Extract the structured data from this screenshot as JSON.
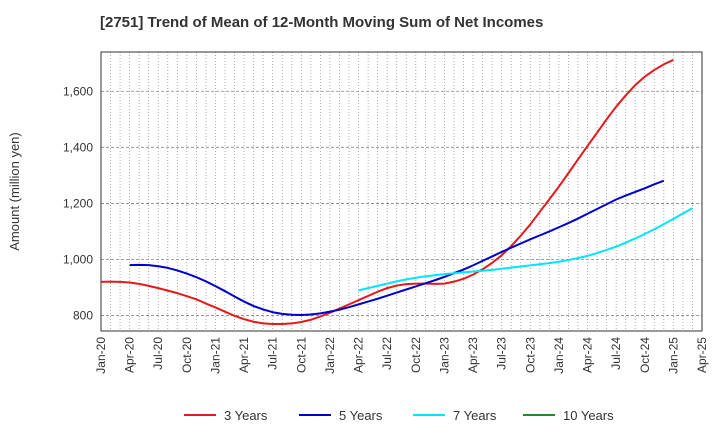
{
  "chart_data": {
    "type": "line",
    "title": "[2751]  Trend of Mean of 12-Month Moving Sum of Net Incomes",
    "ylabel": "Amount (million yen)",
    "xlabel": "",
    "x_categories": [
      "Jan-20",
      "Apr-20",
      "Jul-20",
      "Oct-20",
      "Jan-21",
      "Apr-21",
      "Jul-21",
      "Oct-21",
      "Jan-22",
      "Apr-22",
      "Jul-22",
      "Oct-22",
      "Jan-23",
      "Apr-23",
      "Jul-23",
      "Oct-23",
      "Jan-24",
      "Apr-24",
      "Jul-24",
      "Oct-24",
      "Jan-25",
      "Apr-25"
    ],
    "y_ticks": [
      800,
      1000,
      1200,
      1400,
      1600
    ],
    "y_tick_labels": [
      "800",
      "1,000",
      "1,200",
      "1,400",
      "1,600"
    ],
    "ylim": [
      745,
      1740
    ],
    "grid": true,
    "legend_position": "bottom",
    "series": [
      {
        "name": "3 Years",
        "color": "#e31a1c",
        "start_index": 0,
        "values": [
          920,
          921,
          920,
          918,
          913,
          906,
          898,
          889,
          880,
          869,
          858,
          843,
          829,
          814,
          799,
          787,
          778,
          772,
          770,
          770,
          772,
          777,
          785,
          797,
          810,
          825,
          840,
          855,
          870,
          885,
          898,
          907,
          912,
          914,
          914,
          913,
          914,
          921,
          931,
          946,
          965,
          988,
          1015,
          1048,
          1085,
          1125,
          1170,
          1215,
          1260,
          1308,
          1357,
          1405,
          1452,
          1500,
          1545,
          1585,
          1622,
          1652,
          1676,
          1696,
          1712
        ]
      },
      {
        "name": "5 Years",
        "color": "#0000cc",
        "start_index": 3,
        "values": [
          980,
          981,
          980,
          976,
          970,
          961,
          950,
          937,
          922,
          905,
          887,
          868,
          850,
          834,
          822,
          812,
          806,
          803,
          802,
          804,
          808,
          814,
          821,
          830,
          840,
          850,
          860,
          871,
          882,
          893,
          904,
          915,
          926,
          938,
          951,
          964,
          979,
          995,
          1011,
          1027,
          1042,
          1057,
          1072,
          1086,
          1100,
          1115,
          1130,
          1146,
          1163,
          1180,
          1197,
          1214,
          1228,
          1241,
          1254,
          1268,
          1281
        ]
      },
      {
        "name": "7 Years",
        "color": "#00e5ff",
        "start_index": 27,
        "values": [
          890,
          898,
          906,
          914,
          922,
          929,
          935,
          940,
          944,
          948,
          951,
          954,
          957,
          960,
          963,
          967,
          971,
          975,
          979,
          983,
          987,
          992,
          998,
          1005,
          1013,
          1023,
          1034,
          1046,
          1060,
          1075,
          1091,
          1108,
          1126,
          1145,
          1164,
          1183
        ]
      },
      {
        "name": "10 Years",
        "color": "#228b22",
        "start_index": 0,
        "values": []
      }
    ]
  }
}
